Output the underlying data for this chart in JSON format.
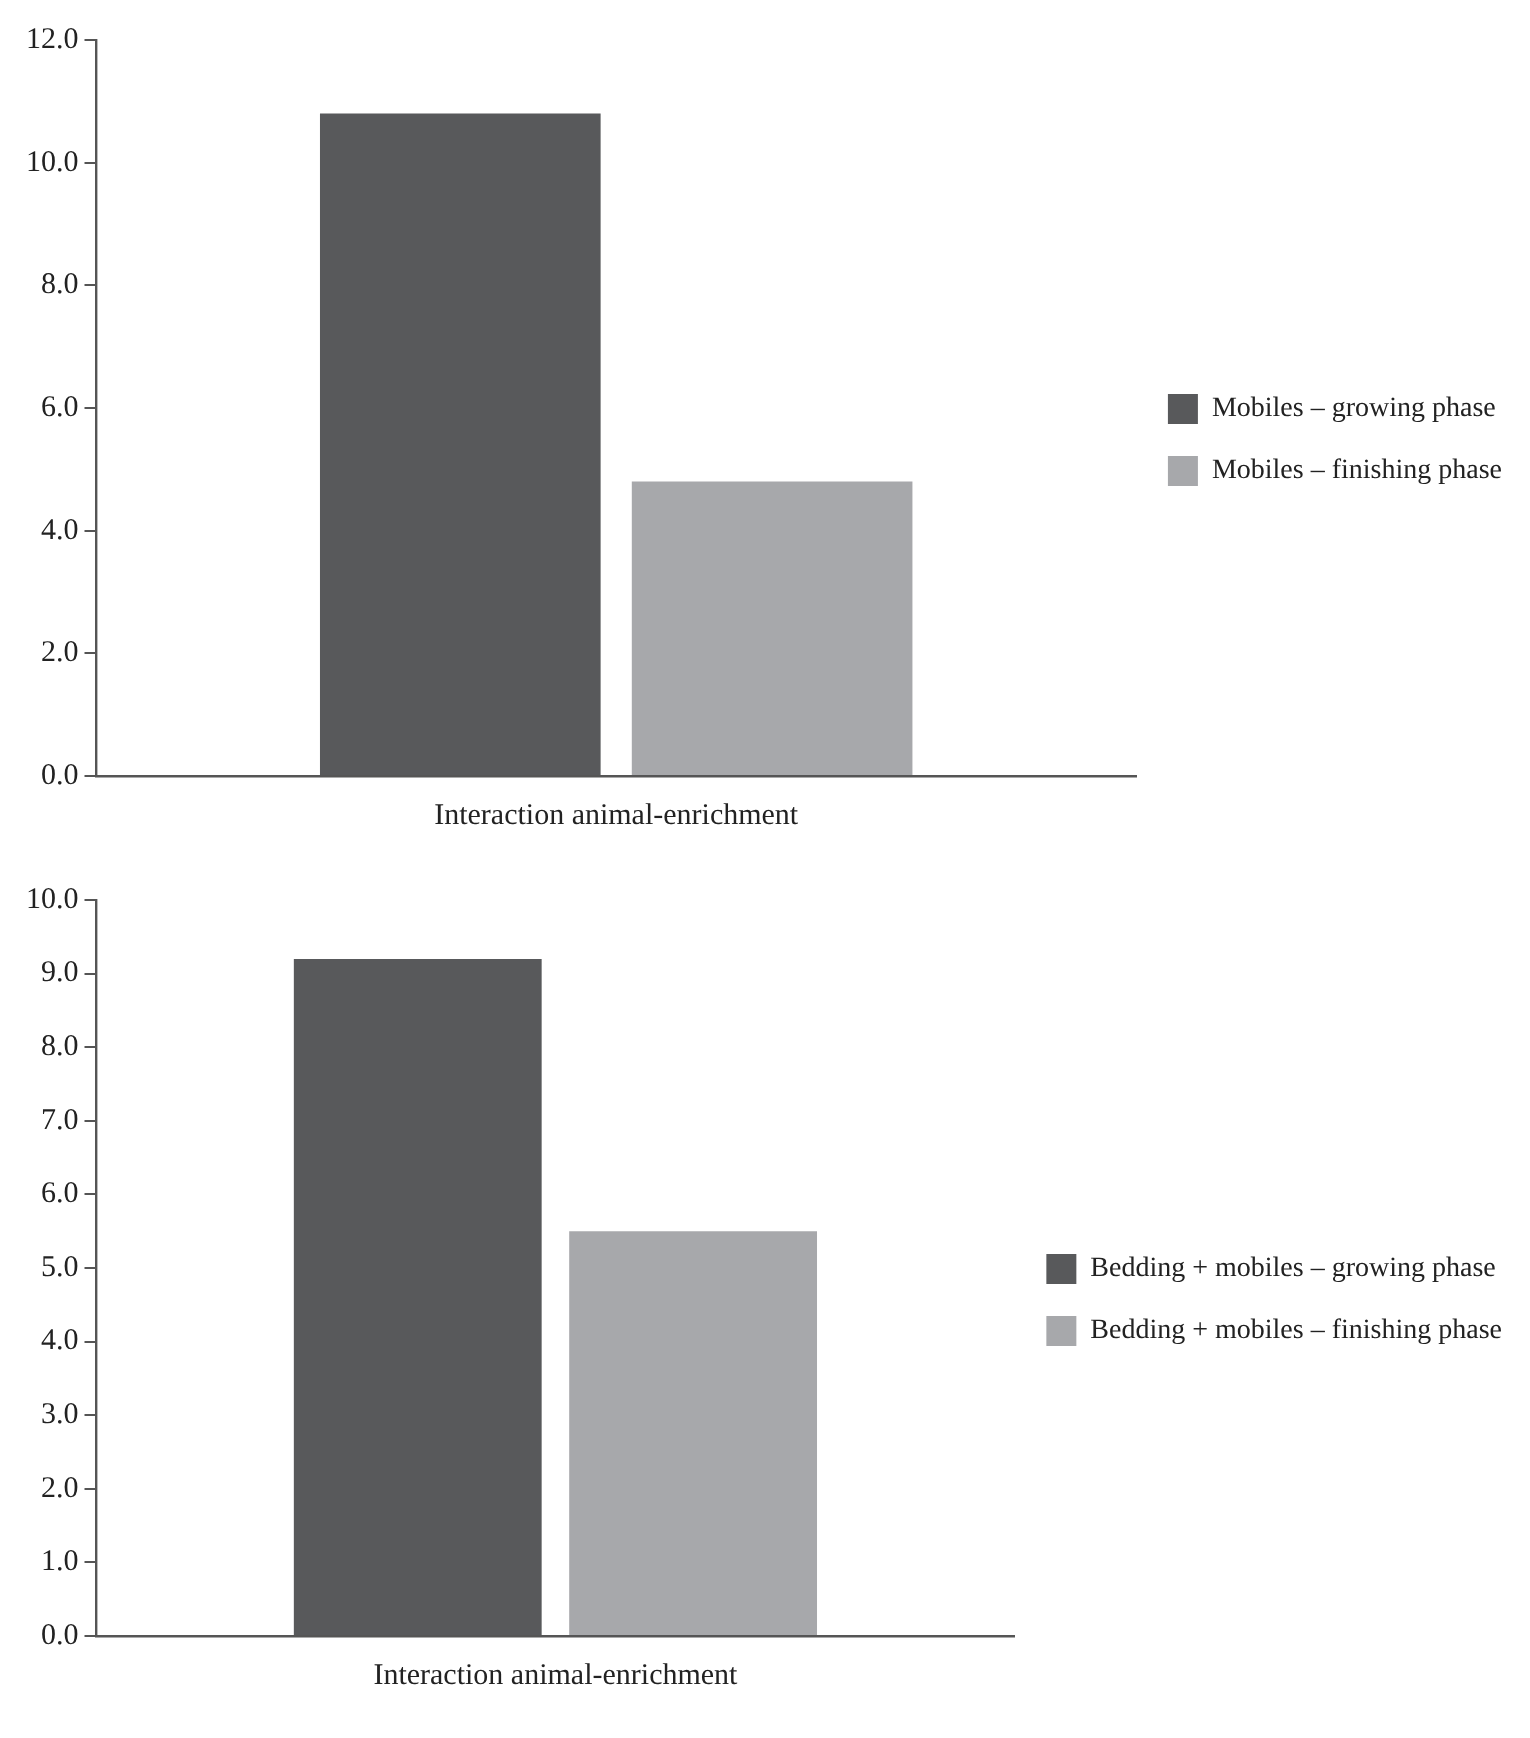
{
  "chart_data": [
    {
      "type": "bar",
      "categories": [
        "Interaction animal-enrichment"
      ],
      "series": [
        {
          "name": "Mobiles – growing phase",
          "color": "#58595b",
          "values": [
            10.8
          ]
        },
        {
          "name": "Mobiles – finishing phase",
          "color": "#a7a8ab",
          "values": [
            4.8
          ]
        }
      ],
      "ylim": [
        0,
        12
      ],
      "yticks": [
        {
          "value": 0,
          "label": "0.0"
        },
        {
          "value": 2,
          "label": "2.0"
        },
        {
          "value": 4,
          "label": "4.0"
        },
        {
          "value": 6,
          "label": "6.0"
        },
        {
          "value": 8,
          "label": "8.0"
        },
        {
          "value": 10,
          "label": "10.0"
        },
        {
          "value": 12,
          "label": "12.0"
        }
      ],
      "grid": false,
      "legend": "right"
    },
    {
      "type": "bar",
      "categories": [
        "Interaction animal-enrichment"
      ],
      "series": [
        {
          "name": "Bedding + mobiles – growing phase",
          "color": "#58595b",
          "values": [
            9.2
          ]
        },
        {
          "name": "Bedding + mobiles – finishing phase",
          "color": "#a7a8ab",
          "values": [
            5.5
          ]
        }
      ],
      "ylim": [
        0,
        10
      ],
      "yticks": [
        {
          "value": 0,
          "label": "0.0"
        },
        {
          "value": 1,
          "label": "1.0"
        },
        {
          "value": 2,
          "label": "2.0"
        },
        {
          "value": 3,
          "label": "3.0"
        },
        {
          "value": 4,
          "label": "4.0"
        },
        {
          "value": 5,
          "label": "5.0"
        },
        {
          "value": 6,
          "label": "6.0"
        },
        {
          "value": 7,
          "label": "7.0"
        },
        {
          "value": 8,
          "label": "8.0"
        },
        {
          "value": 9,
          "label": "9.0"
        },
        {
          "value": 10,
          "label": "10.0"
        }
      ],
      "grid": false,
      "legend": "right"
    }
  ]
}
